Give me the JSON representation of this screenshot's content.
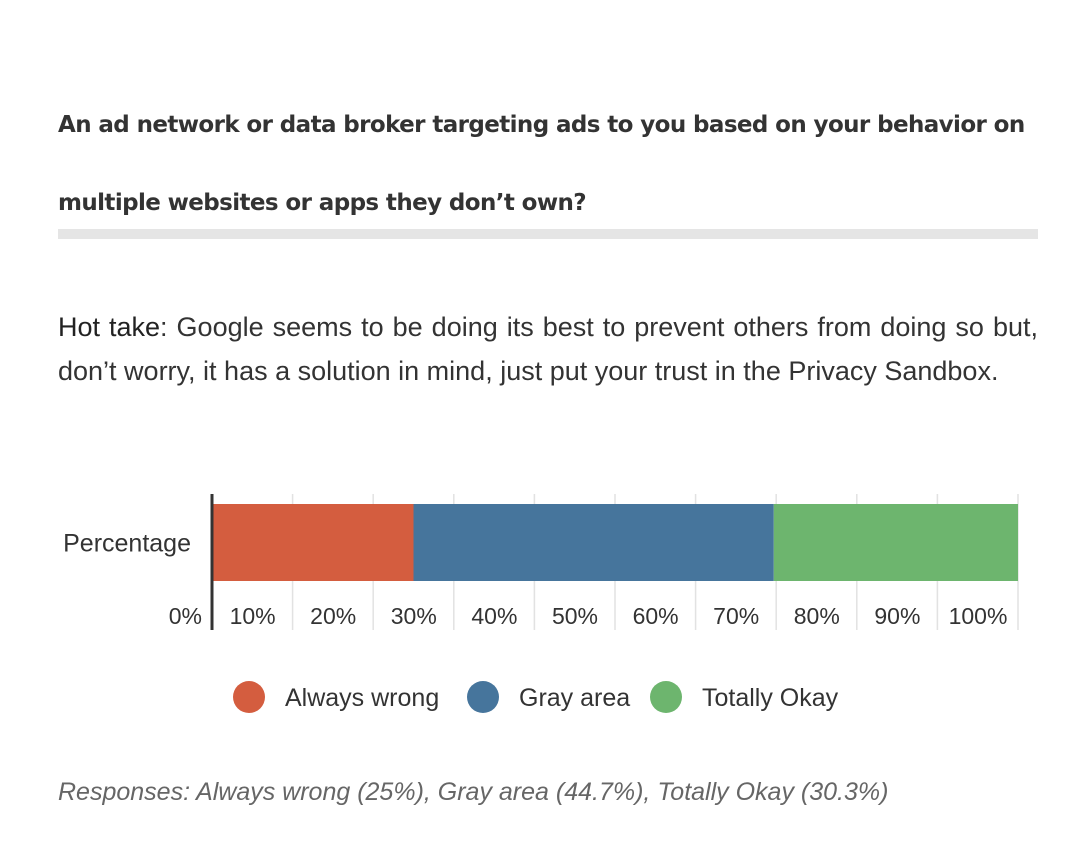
{
  "question": "An ad network or data broker targeting ads to you based on your behavior on multiple websites or apps they don’t own?",
  "hot_take": {
    "label": "Hot take",
    "separator": ":",
    "text": " Google seems to be doing its best to prevent others from doing so but, don’t worry, it has a solution in mind, just put your trust in the Privacy Sandbox."
  },
  "chart_data": {
    "type": "bar",
    "orientation": "horizontal",
    "stacked": true,
    "categories": [
      "Percentage"
    ],
    "series": [
      {
        "name": "Always wrong",
        "values": [
          25
        ],
        "color": "#d45d3f"
      },
      {
        "name": "Gray area",
        "values": [
          44.7
        ],
        "color": "#46759c"
      },
      {
        "name": "Totally Okay",
        "values": [
          30.3
        ],
        "color": "#6db56e"
      }
    ],
    "xlim": [
      0,
      100
    ],
    "xticks": [
      "0%",
      "10%",
      "20%",
      "30%",
      "40%",
      "50%",
      "60%",
      "70%",
      "80%",
      "90%",
      "100%"
    ],
    "grid": true,
    "legend": "bottom"
  },
  "footnote": "Responses: Always wrong (25%), Gray area (44.7%), Totally Okay (30.3%)"
}
